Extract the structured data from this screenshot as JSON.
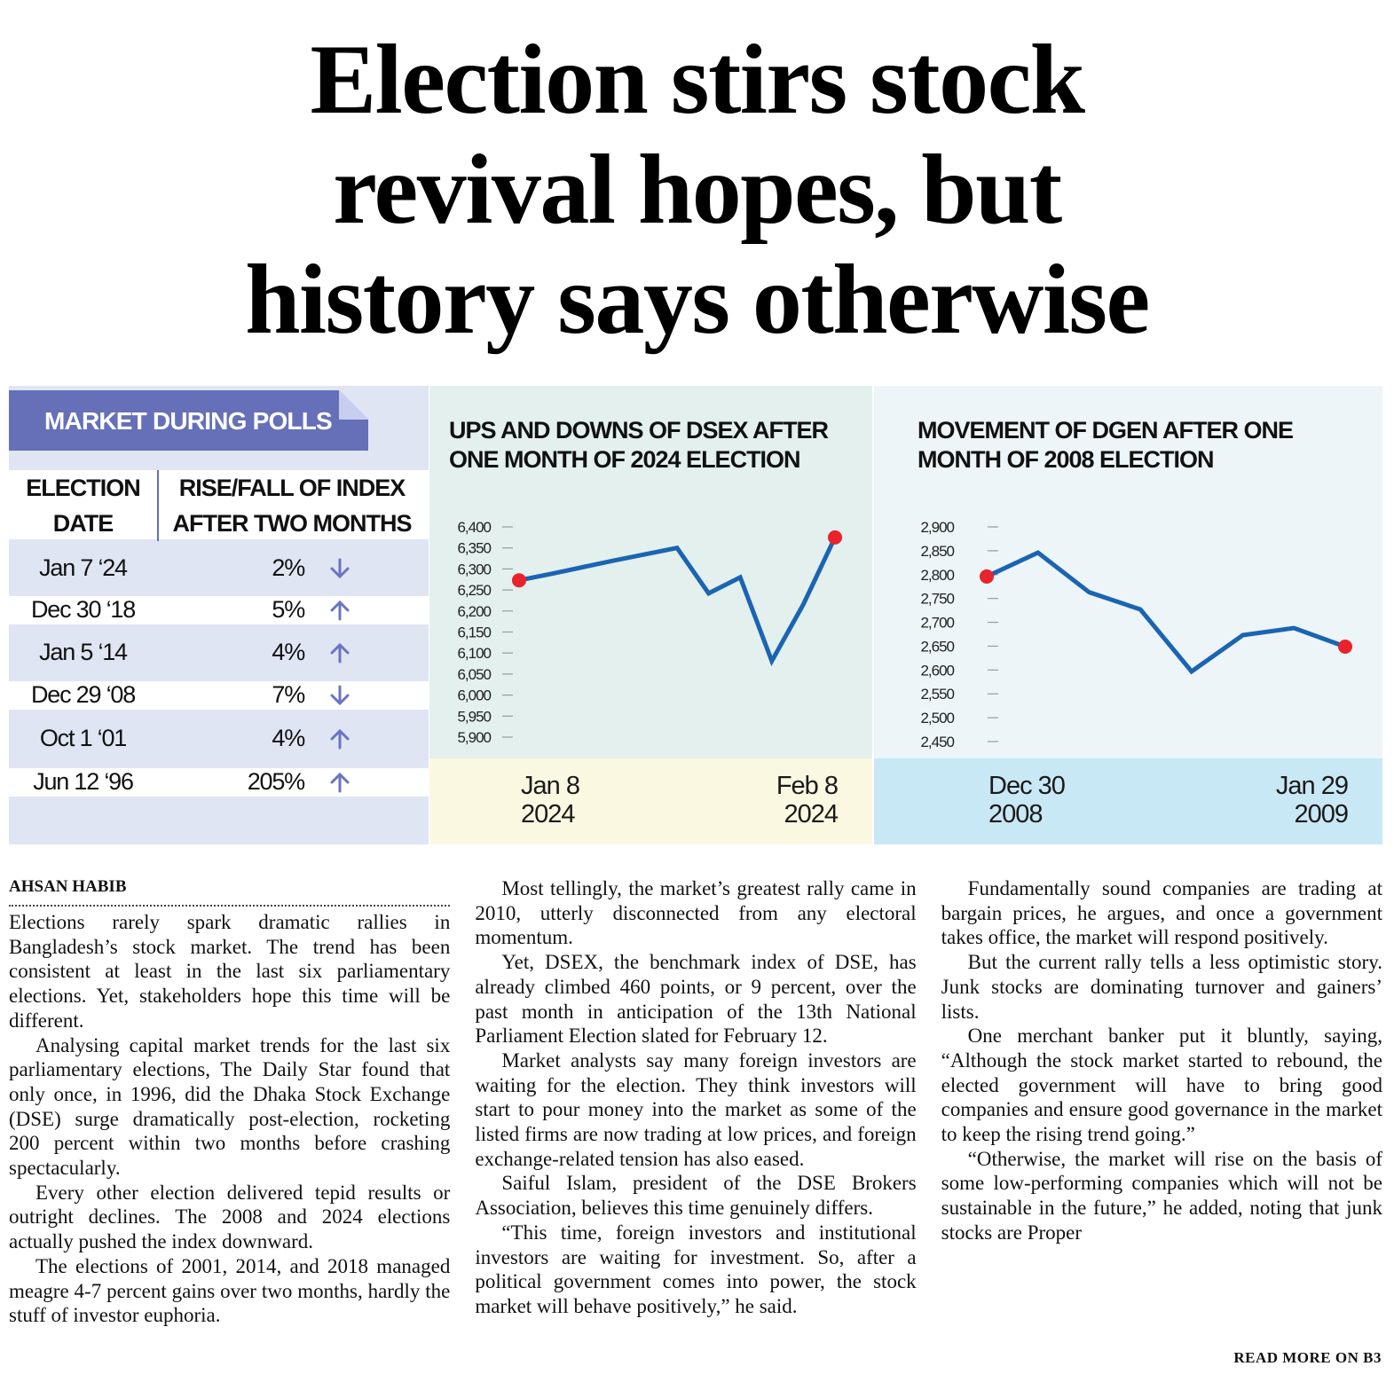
{
  "headline": "Election stirs stock\nrevival hopes, but\nhistory says otherwise",
  "table": {
    "title": "MARKET DURING POLLS",
    "headers": [
      "ELECTION\nDATE",
      "RISE/FALL OF INDEX\nAFTER TWO MONTHS"
    ],
    "rows": [
      {
        "date": "Jan 7 ‘24",
        "change": "2%",
        "direction": "down"
      },
      {
        "date": "Dec 30 ‘18",
        "change": "5%",
        "direction": "up"
      },
      {
        "date": "Jan 5 ‘14",
        "change": "4%",
        "direction": "up"
      },
      {
        "date": "Dec 29 ‘08",
        "change": "7%",
        "direction": "down"
      },
      {
        "date": "Oct 1 ‘01",
        "change": "4%",
        "direction": "up"
      },
      {
        "date": "Jun 12 ‘96",
        "change": "205%",
        "direction": "up"
      }
    ]
  },
  "chart_data": [
    {
      "type": "line",
      "title": "UPS AND DOWNS OF DSEX AFTER\nONE MONTH OF 2024 ELECTION",
      "categories": [
        "Jan 8\n2024",
        null,
        null,
        null,
        null,
        null,
        null,
        null,
        null,
        null,
        "Feb 8\n2024"
      ],
      "series": [
        {
          "color": "#1b64b2",
          "values": [
            6273,
            6288,
            6304,
            6320,
            6335,
            6350,
            6242,
            6280,
            6081,
            6216,
            6375
          ]
        }
      ],
      "end_markers": true,
      "marker_color": "#e8232b",
      "ylim": [
        5900,
        6400
      ],
      "yticks": [
        {
          "value": 5900,
          "label": "5,900"
        },
        {
          "value": 5950,
          "label": "5,950"
        },
        {
          "value": 6000,
          "label": "6,000"
        },
        {
          "value": 6050,
          "label": "6,050"
        },
        {
          "value": 6100,
          "label": "6,100"
        },
        {
          "value": 6150,
          "label": "6,150"
        },
        {
          "value": 6200,
          "label": "6,200"
        },
        {
          "value": 6250,
          "label": "6,250"
        },
        {
          "value": 6300,
          "label": "6,300"
        },
        {
          "value": 6350,
          "label": "6,350"
        },
        {
          "value": 6400,
          "label": "6,400"
        }
      ]
    },
    {
      "type": "line",
      "title": "MOVEMENT OF DGEN AFTER ONE\nMONTH OF 2008 ELECTION",
      "categories": [
        "Dec 30\n2008",
        null,
        null,
        null,
        null,
        null,
        null,
        "Jan 29\n2009"
      ],
      "series": [
        {
          "color": "#1b64b2",
          "values": [
            2796,
            2846,
            2763,
            2727,
            2597,
            2673,
            2688,
            2649
          ]
        }
      ],
      "end_markers": true,
      "marker_color": "#e8232b",
      "ylim": [
        2450,
        2900
      ],
      "yticks": [
        {
          "value": 2450,
          "label": "2,450"
        },
        {
          "value": 2500,
          "label": "2,500"
        },
        {
          "value": 2550,
          "label": "2,550"
        },
        {
          "value": 2600,
          "label": "2,600"
        },
        {
          "value": 2650,
          "label": "2,650"
        },
        {
          "value": 2700,
          "label": "2,700"
        },
        {
          "value": 2750,
          "label": "2,750"
        },
        {
          "value": 2800,
          "label": "2,800"
        },
        {
          "value": 2850,
          "label": "2,850"
        },
        {
          "value": 2900,
          "label": "2,900"
        }
      ]
    }
  ],
  "article": {
    "byline": "AHSAN HABIB",
    "paragraphs": [
      "Elections rarely spark dramatic rallies in Bangladesh’s stock market. The trend has been consistent at least in the last six parliamentary elections. Yet, stakeholders hope this time will be different.",
      "Analysing capital market trends for the last six parliamentary elections, The Daily Star found that only once, in 1996, did the Dhaka Stock Exchange (DSE) surge dramatically post-election, rocketing 200 percent within two months before crashing spectacularly.",
      "Every other election delivered tepid results or outright declines. The 2008 and 2024 elections actually pushed the index downward.",
      "The elections of 2001, 2014, and 2018 managed meagre 4-7 percent gains over two months, hardly the stuff of investor euphoria.",
      "Most tellingly, the market’s greatest rally came in 2010, utterly disconnected from any electoral momentum.",
      "Yet, DSEX, the benchmark index of DSE, has already climbed 460 points, or 9 percent, over the past month in anticipation of the 13th National Parliament Election slated for February 12.",
      "Market analysts say many foreign investors are waiting for the election. They think investors will start to pour money into the market as some of the listed firms are now trading at low prices, and foreign exchange-related tension has also eased.",
      "Saiful Islam, president of the DSE Brokers Association, believes this time genuinely differs.",
      "“This time, foreign investors and institutional investors are waiting for investment. So, after a political government comes into power, the stock market will behave positively,” he said.",
      "Fundamentally sound companies are trading at bargain prices, he argues, and once a government takes office, the market will respond positively.",
      "But the current rally tells a less optimistic story. Junk stocks are dominating turnover and gainers’ lists.",
      "One merchant banker put it bluntly, saying, “Although the stock market started to rebound, the elected government will have to bring good companies and ensure good governance in the market to keep the rising trend going.”",
      "“Otherwise, the market will rise on the basis of some low-performing companies which will not be sustainable in the future,” he added, noting that junk stocks are Proper"
    ],
    "read_more": "READ MORE ON B3"
  }
}
